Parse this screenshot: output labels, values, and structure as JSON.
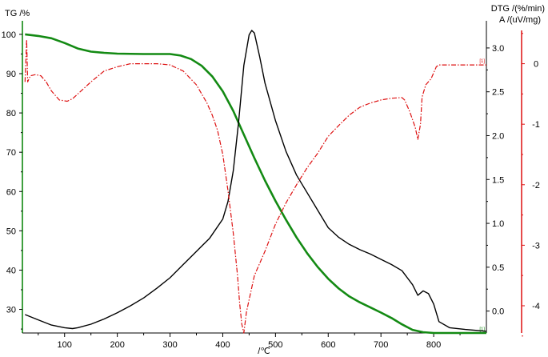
{
  "chart_data": {
    "type": "line",
    "title": "",
    "xlabel": "/℃",
    "xlim": [
      20,
      900
    ],
    "x_ticks": [
      "100",
      "200",
      "300",
      "400",
      "500",
      "600",
      "700",
      "800"
    ],
    "y_axes": {
      "tg": {
        "label": "TG /%",
        "ylim": [
          24,
          101
        ],
        "ticks": [
          "30",
          "40",
          "50",
          "60",
          "70",
          "80",
          "90",
          "100"
        ],
        "color": "#000000",
        "axis_color": "#008000"
      },
      "dtg": {
        "label": "DTG /(%/min)",
        "ylim": [
          -0.25,
          3.2
        ],
        "ticks": [
          "0.0",
          "0.5",
          "1.0",
          "1.5",
          "2.0",
          "2.5",
          "3.0"
        ],
        "color": "#000000",
        "axis_color": "#000000"
      },
      "dta": {
        "label": "A /(uV/mg)",
        "ylim": [
          -4.45,
          0.55
        ],
        "ticks": [
          "0",
          "-1",
          "-2",
          "-3",
          "-4"
        ],
        "color": "#000000",
        "axis_color": "#dd1111"
      }
    },
    "series": [
      {
        "axis": "tg",
        "color": "#138a13",
        "style": "solid",
        "end_marker": "[1]",
        "x": [
          25,
          50,
          75,
          100,
          125,
          150,
          175,
          200,
          250,
          300,
          320,
          340,
          360,
          380,
          400,
          420,
          440,
          460,
          480,
          500,
          520,
          540,
          560,
          580,
          600,
          620,
          640,
          660,
          680,
          700,
          720,
          740,
          760,
          780,
          800,
          850,
          900
        ],
        "values": [
          100,
          99.6,
          99,
          97.8,
          96.4,
          95.6,
          95.3,
          95.1,
          95,
          95,
          94.6,
          93.7,
          92,
          89.3,
          85.5,
          80.5,
          74.5,
          68.5,
          62.8,
          57.6,
          52.8,
          48.3,
          44.3,
          40.8,
          37.8,
          35.3,
          33.3,
          31.8,
          30.5,
          29.2,
          27.8,
          26.2,
          24.8,
          24.2,
          24,
          24,
          24
        ]
      },
      {
        "axis": "dtg",
        "color": "#000000",
        "style": "solid",
        "end_marker": "",
        "x": [
          25,
          50,
          75,
          100,
          115,
          125,
          150,
          175,
          200,
          225,
          250,
          275,
          300,
          325,
          350,
          375,
          400,
          410,
          420,
          430,
          440,
          450,
          455,
          460,
          470,
          480,
          500,
          520,
          540,
          560,
          580,
          600,
          620,
          640,
          660,
          680,
          700,
          720,
          740,
          760,
          770,
          780,
          790,
          800,
          810,
          830,
          860,
          900
        ],
        "values": [
          -0.04,
          -0.1,
          -0.16,
          -0.19,
          -0.2,
          -0.19,
          -0.15,
          -0.09,
          -0.02,
          0.06,
          0.15,
          0.26,
          0.38,
          0.53,
          0.68,
          0.83,
          1.05,
          1.25,
          1.6,
          2.15,
          2.8,
          3.15,
          3.2,
          3.17,
          2.9,
          2.6,
          2.17,
          1.82,
          1.55,
          1.35,
          1.15,
          0.95,
          0.84,
          0.76,
          0.7,
          0.65,
          0.59,
          0.53,
          0.46,
          0.3,
          0.18,
          0.23,
          0.2,
          0.08,
          -0.12,
          -0.19,
          -0.21,
          -0.23
        ]
      },
      {
        "axis": "dta",
        "color": "#dd1111",
        "style": "dashdot",
        "end_marker": "[1]",
        "x": [
          25,
          28,
          30,
          35,
          45,
          55,
          65,
          75,
          90,
          105,
          115,
          125,
          150,
          175,
          200,
          225,
          250,
          275,
          300,
          325,
          350,
          370,
          380,
          390,
          400,
          410,
          420,
          428,
          432,
          436,
          440,
          445,
          460,
          480,
          500,
          520,
          540,
          560,
          580,
          600,
          620,
          640,
          660,
          680,
          700,
          720,
          740,
          745,
          755,
          765,
          770,
          775,
          778,
          785,
          795,
          805,
          810,
          830,
          860,
          900
        ],
        "values": [
          -0.3,
          0.4,
          -0.3,
          -0.2,
          -0.18,
          -0.2,
          -0.3,
          -0.45,
          -0.6,
          -0.62,
          -0.58,
          -0.5,
          -0.3,
          -0.12,
          -0.05,
          0,
          0,
          0,
          -0.02,
          -0.12,
          -0.35,
          -0.65,
          -0.85,
          -1.1,
          -1.5,
          -2.1,
          -2.8,
          -3.5,
          -3.95,
          -4.3,
          -4.45,
          -4.1,
          -3.5,
          -3.1,
          -2.65,
          -2.3,
          -2.0,
          -1.72,
          -1.48,
          -1.2,
          -1.02,
          -0.85,
          -0.72,
          -0.65,
          -0.6,
          -0.57,
          -0.56,
          -0.6,
          -0.8,
          -1.05,
          -1.25,
          -1.0,
          -0.55,
          -0.35,
          -0.25,
          -0.05,
          -0.02,
          -0.02,
          -0.02,
          -0.02
        ]
      }
    ]
  }
}
